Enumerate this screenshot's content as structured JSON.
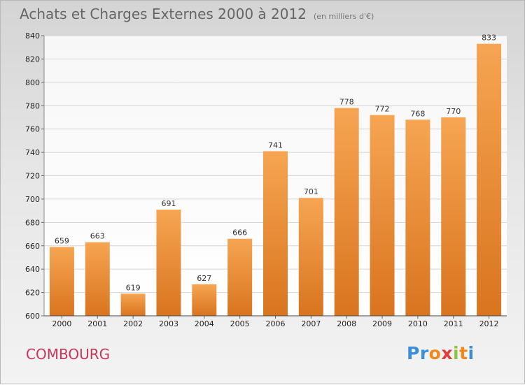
{
  "header": {
    "title": "Achats et Charges Externes 2000 à 2012",
    "unit": "(en milliers d'€)"
  },
  "footer": {
    "commune": "COMBOURG",
    "logo": [
      "P",
      "r",
      "o",
      "x",
      "i",
      "t",
      "i"
    ],
    "logo_colors": [
      "#3c8fd6",
      "#3c8fd6",
      "#f08a1c",
      "#e33b3b",
      "#8cc63f",
      "#f08a1c",
      "#3c8fd6"
    ]
  },
  "colors": {
    "bar_top": "#f6a552",
    "bar_bottom": "#d9741f",
    "grid": "#d6d6d6",
    "title": "#666666",
    "commune": "#c8365a"
  },
  "chart_data": {
    "type": "bar",
    "title": "Achats et Charges Externes 2000 à 2012",
    "categories": [
      "2000",
      "2001",
      "2002",
      "2003",
      "2004",
      "2005",
      "2006",
      "2007",
      "2008",
      "2009",
      "2010",
      "2011",
      "2012"
    ],
    "values": [
      659,
      663,
      619,
      691,
      627,
      666,
      741,
      701,
      778,
      772,
      768,
      770,
      833
    ],
    "ylim": [
      600,
      840
    ],
    "yticks": [
      600,
      620,
      640,
      660,
      680,
      700,
      720,
      740,
      760,
      780,
      800,
      820,
      840
    ],
    "grid": true,
    "data_labels": true
  }
}
